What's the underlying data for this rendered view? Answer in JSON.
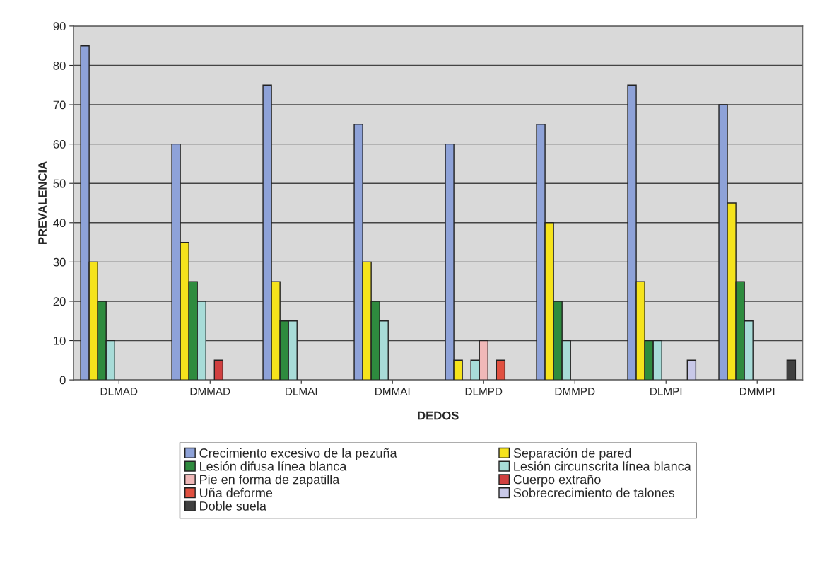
{
  "chart_data": {
    "type": "bar",
    "xlabel": "DEDOS",
    "ylabel": "PREVALENCIA",
    "categories": [
      "DLMAD",
      "DMMAD",
      "DLMAI",
      "DMMAI",
      "DLMPD",
      "DMMPD",
      "DLMPI",
      "DMMPI"
    ],
    "series": [
      {
        "name": "Crecimiento excesivo de la pezuña",
        "color": "#8ea2d8",
        "values": [
          85,
          60,
          75,
          65,
          60,
          65,
          75,
          70
        ]
      },
      {
        "name": "Separación de pared",
        "color": "#f5e31c",
        "values": [
          30,
          35,
          25,
          30,
          5,
          40,
          25,
          45
        ]
      },
      {
        "name": "Lesión difusa línea blanca",
        "color": "#2e8b3e",
        "values": [
          20,
          25,
          15,
          20,
          null,
          20,
          10,
          25
        ]
      },
      {
        "name": "Lesión circunscrita línea blanca",
        "color": "#a8dcd8",
        "values": [
          10,
          20,
          15,
          15,
          5,
          10,
          10,
          15
        ]
      },
      {
        "name": "Pie en forma de zapatilla",
        "color": "#f0b8b8",
        "values": [
          null,
          null,
          null,
          null,
          10,
          null,
          null,
          null
        ]
      },
      {
        "name": "Cuerpo extraño",
        "color": "#d04040",
        "values": [
          null,
          5,
          null,
          null,
          null,
          null,
          null,
          null
        ]
      },
      {
        "name": "Uña deforme",
        "color": "#e05040",
        "values": [
          null,
          null,
          null,
          null,
          5,
          null,
          null,
          null
        ]
      },
      {
        "name": "Sobrecrecimiento de talones",
        "color": "#c8c8e8",
        "values": [
          null,
          null,
          null,
          null,
          null,
          null,
          5,
          null
        ]
      },
      {
        "name": "Doble suela",
        "color": "#404040",
        "values": [
          null,
          null,
          null,
          null,
          null,
          null,
          null,
          5
        ]
      }
    ],
    "ylim": [
      0,
      90
    ],
    "yticks": [
      0,
      10,
      20,
      30,
      40,
      50,
      60,
      70,
      80,
      90
    ],
    "grid": "y",
    "legend": "bottom"
  }
}
